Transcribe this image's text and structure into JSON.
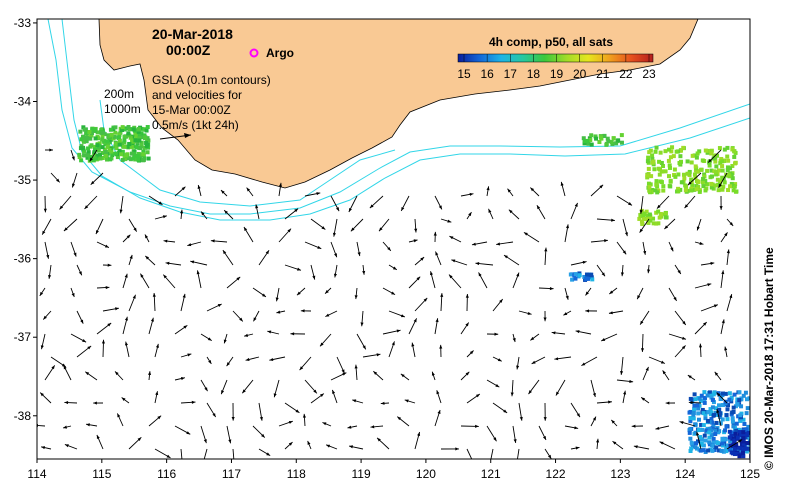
{
  "map": {
    "date": "20-Mar-2018",
    "time": "00:00Z",
    "argo_label": "Argo",
    "gsla_note": [
      "GSLA (0.1m contours)",
      "and velocities for",
      "15-Mar 00:00Z",
      "0.5m/s (1kt 24h)"
    ],
    "contour_labels": [
      "200m",
      "1000m"
    ],
    "credit": "© IMOS 20-Mar-2018 17:31 Hobart Time",
    "land_color": "#f9c994",
    "isobath_color": "#32d6e8",
    "argo_color": "#ff00ff"
  },
  "colorbar": {
    "title": "4h comp, p50, all sats",
    "ticks": [
      "15",
      "16",
      "17",
      "18",
      "19",
      "20",
      "21",
      "22",
      "23"
    ],
    "colors": [
      "#0a1e9c",
      "#1467d8",
      "#1eb4e6",
      "#28c8a0",
      "#3cc83c",
      "#a0dc28",
      "#e6e61e",
      "#f0a01e",
      "#e6501e",
      "#b41e1e"
    ]
  },
  "axes": {
    "x_ticks": [
      "114",
      "115",
      "116",
      "117",
      "118",
      "119",
      "120",
      "121",
      "122",
      "123",
      "124",
      "125"
    ],
    "y_ticks": [
      "-33",
      "-34",
      "-35",
      "-36",
      "-37",
      "-38"
    ],
    "lon_range": [
      114,
      125
    ],
    "lat_range": [
      -38.55,
      -32.95
    ]
  }
}
